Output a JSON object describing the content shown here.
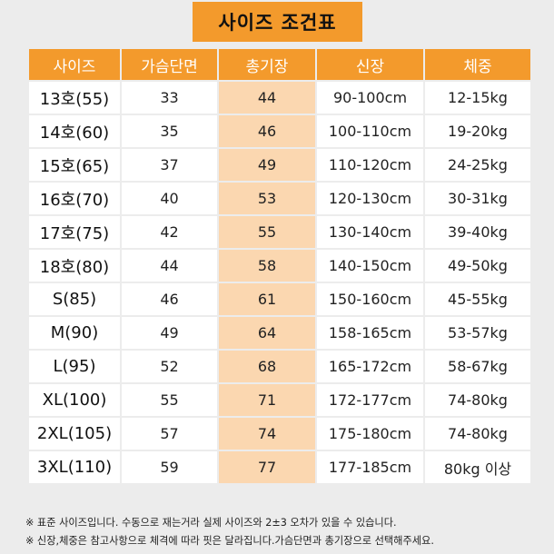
{
  "title": "사이즈 조건표",
  "headers": [
    "사이즈",
    "가슴단면",
    "총기장",
    "신장",
    "체중"
  ],
  "rows": [
    {
      "size": "13호(55)",
      "chest": "33",
      "length": "44",
      "height": "90-100cm",
      "weight": "12-15kg"
    },
    {
      "size": "14호(60)",
      "chest": "35",
      "length": "46",
      "height": "100-110cm",
      "weight": "19-20kg"
    },
    {
      "size": "15호(65)",
      "chest": "37",
      "length": "49",
      "height": "110-120cm",
      "weight": "24-25kg"
    },
    {
      "size": "16호(70)",
      "chest": "40",
      "length": "53",
      "height": "120-130cm",
      "weight": "30-31kg"
    },
    {
      "size": "17호(75)",
      "chest": "42",
      "length": "55",
      "height": "130-140cm",
      "weight": "39-40kg"
    },
    {
      "size": "18호(80)",
      "chest": "44",
      "length": "58",
      "height": "140-150cm",
      "weight": "49-50kg"
    },
    {
      "size": "S(85)",
      "chest": "46",
      "length": "61",
      "height": "150-160cm",
      "weight": "45-55kg"
    },
    {
      "size": "M(90)",
      "chest": "49",
      "length": "64",
      "height": "158-165cm",
      "weight": "53-57kg"
    },
    {
      "size": "L(95)",
      "chest": "52",
      "length": "68",
      "height": "165-172cm",
      "weight": "58-67kg"
    },
    {
      "size": "XL(100)",
      "chest": "55",
      "length": "71",
      "height": "172-177cm",
      "weight": "74-80kg"
    },
    {
      "size": "2XL(105)",
      "chest": "57",
      "length": "74",
      "height": "175-180cm",
      "weight": "74-80kg"
    },
    {
      "size": "3XL(110)",
      "chest": "59",
      "length": "77",
      "height": "177-185cm",
      "weight": "80kg 이상"
    }
  ],
  "notes": [
    "※ 표준 사이즈입니다. 수동으로 재는거라 실제 사이즈와 2±3 오차가 있을 수 있습니다.",
    "※ 신장,체중은 참고사항으로 체격에 따라 핏은 달라집니다.가슴단면과 총기장으로 선택해주세요."
  ],
  "colors": {
    "accent": "#f39a2c",
    "highlight_column": "#fbd7b0",
    "background": "#ececec"
  }
}
